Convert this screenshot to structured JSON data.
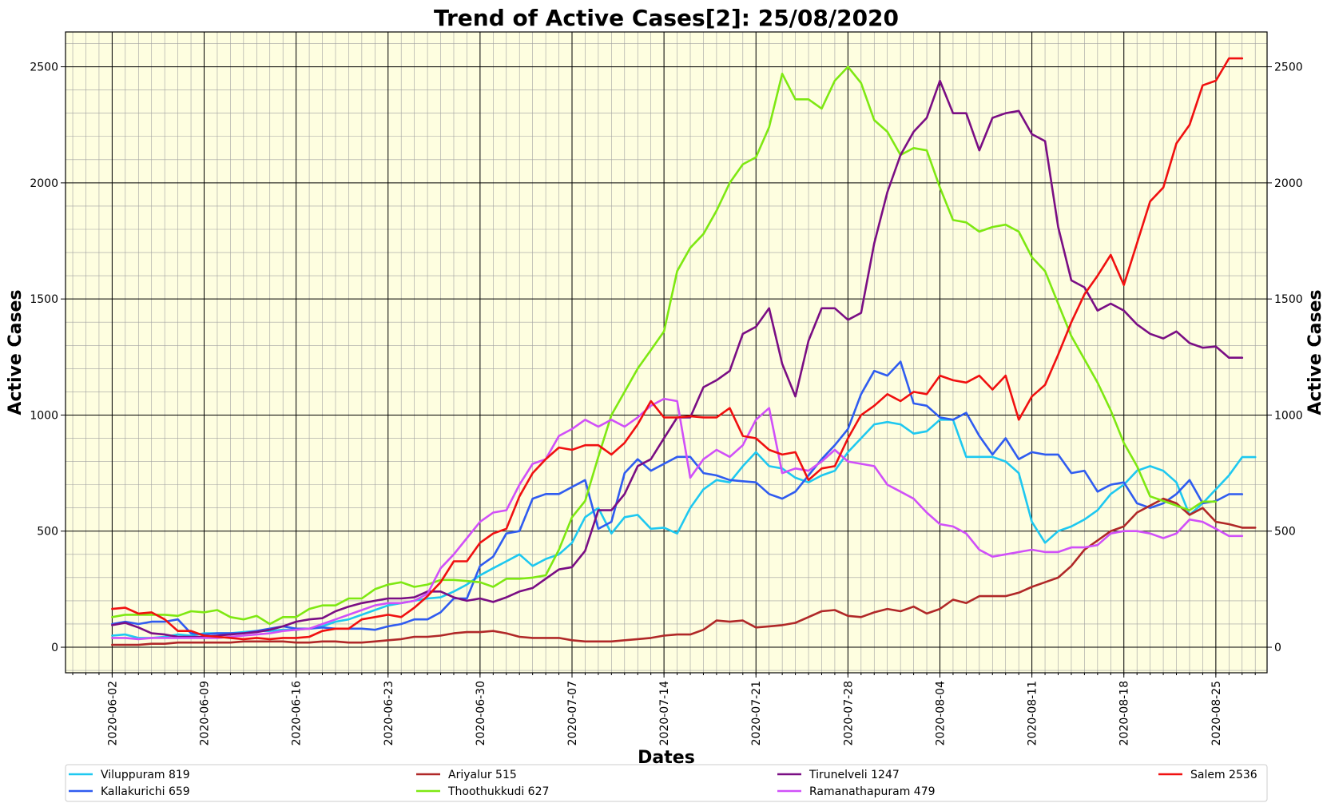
{
  "chart_data": {
    "type": "line",
    "title": "Trend of Active Cases[2]: 25/08/2020",
    "xlabel": "Dates",
    "ylabel": "Active Cases",
    "ylim": [
      -110,
      2650
    ],
    "yticks": [
      0,
      500,
      1000,
      1500,
      2000,
      2500
    ],
    "xticks": [
      "2020-06-02",
      "2020-06-09",
      "2020-06-16",
      "2020-06-23",
      "2020-06-30",
      "2020-07-07",
      "2020-07-14",
      "2020-07-21",
      "2020-07-28",
      "2020-08-04",
      "2020-08-11",
      "2020-08-18",
      "2020-08-25"
    ],
    "x_start": "2020-06-02",
    "x_end": "2020-08-25",
    "grid": true,
    "minor_grid": true,
    "background": "#fefee0",
    "legend_position": "bottom",
    "series": [
      {
        "name": "Viluppuram 819",
        "color": "#1ec8f0",
        "values": [
          50,
          55,
          40,
          40,
          45,
          55,
          50,
          60,
          60,
          60,
          65,
          70,
          70,
          75,
          75,
          80,
          90,
          110,
          120,
          140,
          160,
          180,
          190,
          200,
          210,
          215,
          240,
          270,
          310,
          340,
          370,
          400,
          350,
          380,
          400,
          450,
          560,
          600,
          490,
          560,
          570,
          510,
          515,
          490,
          600,
          680,
          720,
          710,
          780,
          840,
          780,
          770,
          730,
          710,
          740,
          760,
          840,
          900,
          960,
          970,
          960,
          920,
          930,
          980,
          980,
          820,
          820,
          820,
          800,
          750,
          540,
          450,
          500,
          520,
          550,
          590,
          660,
          700,
          760,
          780,
          760,
          710,
          570,
          620,
          680,
          740,
          819,
          819
        ]
      },
      {
        "name": "Kallakurichi 659",
        "color": "#2f5cf0",
        "values": [
          100,
          110,
          100,
          110,
          110,
          120,
          60,
          55,
          60,
          60,
          60,
          70,
          80,
          90,
          80,
          80,
          85,
          80,
          80,
          80,
          75,
          90,
          100,
          120,
          120,
          150,
          210,
          210,
          350,
          390,
          490,
          500,
          640,
          660,
          660,
          690,
          720,
          510,
          540,
          750,
          810,
          760,
          790,
          820,
          820,
          750,
          740,
          720,
          715,
          710,
          660,
          640,
          670,
          740,
          810,
          870,
          940,
          1090,
          1190,
          1170,
          1230,
          1050,
          1040,
          990,
          980,
          1010,
          910,
          830,
          900,
          810,
          840,
          830,
          830,
          750,
          760,
          670,
          700,
          710,
          620,
          600,
          620,
          660,
          720,
          620,
          630,
          659,
          659
        ]
      },
      {
        "name": "Ariyalur 515",
        "color": "#b02828",
        "values": [
          10,
          10,
          10,
          15,
          15,
          20,
          20,
          20,
          20,
          20,
          25,
          25,
          25,
          25,
          20,
          20,
          25,
          25,
          20,
          20,
          25,
          30,
          35,
          45,
          45,
          50,
          60,
          65,
          65,
          70,
          60,
          45,
          40,
          40,
          40,
          30,
          25,
          25,
          25,
          30,
          35,
          40,
          50,
          55,
          55,
          75,
          115,
          110,
          115,
          85,
          90,
          95,
          105,
          130,
          155,
          160,
          135,
          130,
          150,
          165,
          155,
          175,
          145,
          165,
          205,
          190,
          220,
          220,
          220,
          235,
          260,
          280,
          300,
          350,
          420,
          460,
          500,
          520,
          580,
          610,
          640,
          620,
          570,
          600,
          540,
          530,
          515,
          515
        ]
      },
      {
        "name": "Thoothukkudi 627",
        "color": "#7ee812",
        "values": [
          130,
          140,
          140,
          140,
          140,
          135,
          155,
          150,
          160,
          130,
          120,
          135,
          100,
          130,
          130,
          165,
          180,
          180,
          210,
          210,
          250,
          270,
          280,
          260,
          270,
          290,
          290,
          285,
          280,
          260,
          295,
          295,
          300,
          310,
          420,
          560,
          630,
          820,
          1000,
          1100,
          1200,
          1280,
          1360,
          1620,
          1720,
          1780,
          1880,
          2000,
          2080,
          2110,
          2240,
          2470,
          2360,
          2360,
          2320,
          2440,
          2500,
          2430,
          2270,
          2220,
          2120,
          2150,
          2140,
          1980,
          1840,
          1830,
          1790,
          1810,
          1820,
          1790,
          1680,
          1620,
          1480,
          1340,
          1240,
          1140,
          1020,
          880,
          780,
          650,
          630,
          610,
          590,
          627,
          627
        ]
      },
      {
        "name": "Tirunelveli 1247",
        "color": "#7a0e84",
        "values": [
          95,
          105,
          85,
          60,
          55,
          45,
          45,
          45,
          50,
          55,
          60,
          65,
          75,
          90,
          110,
          120,
          125,
          155,
          175,
          190,
          200,
          210,
          210,
          215,
          240,
          240,
          215,
          200,
          210,
          195,
          215,
          240,
          255,
          295,
          335,
          345,
          415,
          590,
          590,
          660,
          780,
          810,
          900,
          990,
          990,
          1120,
          1150,
          1190,
          1350,
          1380,
          1460,
          1220,
          1080,
          1320,
          1460,
          1460,
          1410,
          1440,
          1740,
          1960,
          2120,
          2220,
          2280,
          2440,
          2300,
          2300,
          2140,
          2280,
          2300,
          2310,
          2210,
          2180,
          1810,
          1580,
          1550,
          1450,
          1480,
          1450,
          1390,
          1350,
          1330,
          1360,
          1310,
          1290,
          1295,
          1247,
          1247
        ]
      },
      {
        "name": "Ramanathapuram 479",
        "color": "#d050f8",
        "values": [
          40,
          40,
          35,
          40,
          40,
          40,
          40,
          40,
          40,
          45,
          50,
          55,
          60,
          70,
          75,
          80,
          100,
          120,
          140,
          160,
          180,
          190,
          190,
          200,
          230,
          340,
          400,
          470,
          540,
          580,
          590,
          700,
          790,
          810,
          910,
          940,
          980,
          950,
          980,
          950,
          990,
          1040,
          1070,
          1060,
          730,
          810,
          850,
          820,
          870,
          980,
          1030,
          750,
          770,
          760,
          800,
          850,
          800,
          790,
          780,
          700,
          670,
          640,
          580,
          530,
          520,
          490,
          420,
          390,
          400,
          410,
          420,
          410,
          410,
          430,
          430,
          440,
          490,
          500,
          500,
          490,
          470,
          490,
          550,
          540,
          510,
          479,
          479
        ]
      },
      {
        "name": "Salem 2536",
        "color": "#f01010",
        "values": [
          165,
          170,
          145,
          150,
          120,
          70,
          70,
          50,
          45,
          40,
          35,
          40,
          35,
          40,
          40,
          45,
          70,
          80,
          80,
          120,
          130,
          140,
          130,
          170,
          220,
          280,
          370,
          370,
          450,
          490,
          510,
          650,
          750,
          810,
          860,
          850,
          870,
          870,
          830,
          880,
          960,
          1060,
          990,
          990,
          995,
          990,
          990,
          1030,
          910,
          900,
          850,
          830,
          840,
          720,
          770,
          780,
          900,
          1000,
          1040,
          1090,
          1060,
          1100,
          1090,
          1170,
          1150,
          1140,
          1170,
          1110,
          1170,
          980,
          1080,
          1130,
          1260,
          1400,
          1520,
          1600,
          1690,
          1560,
          1740,
          1920,
          1980,
          2170,
          2250,
          2420,
          2440,
          2536,
          2536
        ]
      }
    ]
  }
}
